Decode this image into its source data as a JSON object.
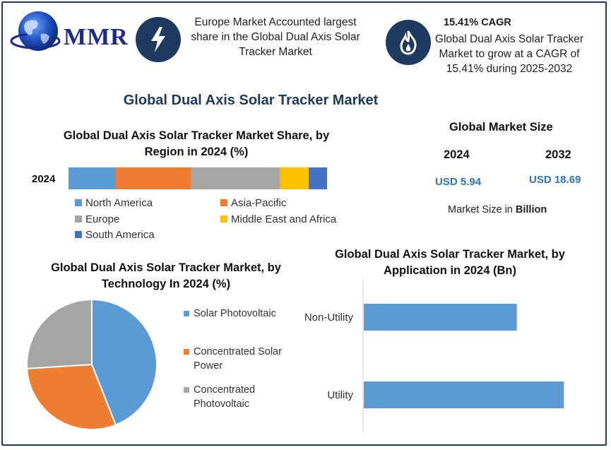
{
  "colors": {
    "navy": "#1f3a60",
    "north_america": "#5b9bd5",
    "asia_pacific": "#ed7d31",
    "europe": "#a5a5a5",
    "mea": "#ffc000",
    "south_america": "#4472c4",
    "value_blue": "#2e75b6"
  },
  "logo": {
    "text": "MMR"
  },
  "header": {
    "europe_text": "Europe Market Accounted largest share in the Global Dual Axis Solar Tracker Market",
    "cagr_title": "15.41% CAGR",
    "cagr_text": "Global Dual Axis Solar Tracker Market to grow at a CAGR of 15.41% during 2025-2032",
    "icons": [
      "lightning-icon",
      "flame-icon"
    ]
  },
  "main_title": "Global Dual Axis Solar Tracker Market",
  "market_size": {
    "title": "Global Market Size",
    "year1": "2024",
    "year2": "2032",
    "value1": "USD 5.94",
    "value2": "USD 18.69",
    "note_prefix": "Market Size in ",
    "note_bold": "Billion"
  },
  "chart_data": [
    {
      "type": "bar",
      "orientation": "horizontal-stacked",
      "title": "Global Dual Axis Solar Tracker Market Share, by Region in 2024 (%)",
      "categories": [
        "2024"
      ],
      "series": [
        {
          "name": "North America",
          "values": [
            18
          ],
          "color": "#5b9bd5"
        },
        {
          "name": "Asia-Pacific",
          "values": [
            29
          ],
          "color": "#ed7d31"
        },
        {
          "name": "Europe",
          "values": [
            34
          ],
          "color": "#a5a5a5"
        },
        {
          "name": "Middle East and Africa",
          "values": [
            11
          ],
          "color": "#ffc000"
        },
        {
          "name": "South America",
          "values": [
            7
          ],
          "color": "#4472c4"
        }
      ],
      "legend_position": "bottom"
    },
    {
      "type": "pie",
      "title": "Global Dual Axis Solar Tracker Market, by Technology In 2024 (%)",
      "labels": [
        "Solar Photovoltaic",
        "Concentrated Solar Power",
        "Concentrated Photovoltaic"
      ],
      "values": [
        44,
        30,
        26
      ],
      "colors": [
        "#5b9bd5",
        "#ed7d31",
        "#a5a5a5"
      ],
      "legend_position": "right"
    },
    {
      "type": "bar",
      "orientation": "horizontal",
      "title": "Global Dual Axis Solar Tracker Market, by Application in 2024 (Bn)",
      "categories": [
        "Non-Utility",
        "Utility"
      ],
      "values": [
        2.6,
        3.4
      ],
      "xlim": [
        0,
        3.6
      ],
      "color": "#5b9bd5",
      "grid": false
    }
  ]
}
